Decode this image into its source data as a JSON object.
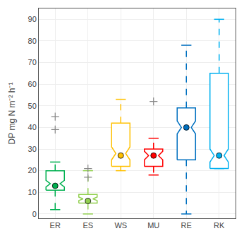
{
  "chart_data": {
    "type": "box",
    "categories": [
      "ER",
      "ES",
      "WS",
      "MU",
      "RE",
      "RK"
    ],
    "colors": [
      "#00b050",
      "#92d050",
      "#ffc000",
      "#ff0000",
      "#0070c0",
      "#00b0f0"
    ],
    "values": [
      {
        "whislo": 2,
        "q1": 11,
        "med": 14,
        "q3": 20,
        "whishi": 24,
        "mean": 13,
        "fliers": [
          39,
          45
        ],
        "notchlo": 12.5,
        "notchhi": 15.5
      },
      {
        "whislo": 0,
        "q1": 5,
        "med": 7,
        "q3": 9,
        "whishi": 20,
        "mean": 6,
        "fliers": [
          17,
          21
        ],
        "notchlo": 6.2,
        "notchhi": 7.8
      },
      {
        "whislo": 20,
        "q1": 22,
        "med": 28,
        "q3": 42,
        "whishi": 53,
        "mean": 27,
        "fliers": [],
        "notchlo": 25,
        "notchhi": 31
      },
      {
        "whislo": 18,
        "q1": 22,
        "med": 27,
        "q3": 30,
        "whishi": 35,
        "mean": 27,
        "fliers": [
          52
        ],
        "notchlo": 25,
        "notchhi": 29
      },
      {
        "whislo": 0,
        "q1": 25,
        "med": 40,
        "q3": 49,
        "whishi": 78,
        "mean": 40,
        "fliers": [],
        "notchlo": 37,
        "notchhi": 43
      },
      {
        "whislo": 21,
        "q1": 21,
        "med": 27,
        "q3": 65,
        "whishi": 90,
        "mean": 27,
        "fliers": [],
        "notchlo": 24,
        "notchhi": 30
      }
    ],
    "ylabel": "DP mg N m⁻² h⁻¹",
    "ylim": [
      -2,
      95
    ],
    "yticks": [
      0,
      10,
      20,
      30,
      40,
      50,
      60,
      70,
      80,
      90
    ],
    "line_style": "dashed",
    "grid": true
  }
}
